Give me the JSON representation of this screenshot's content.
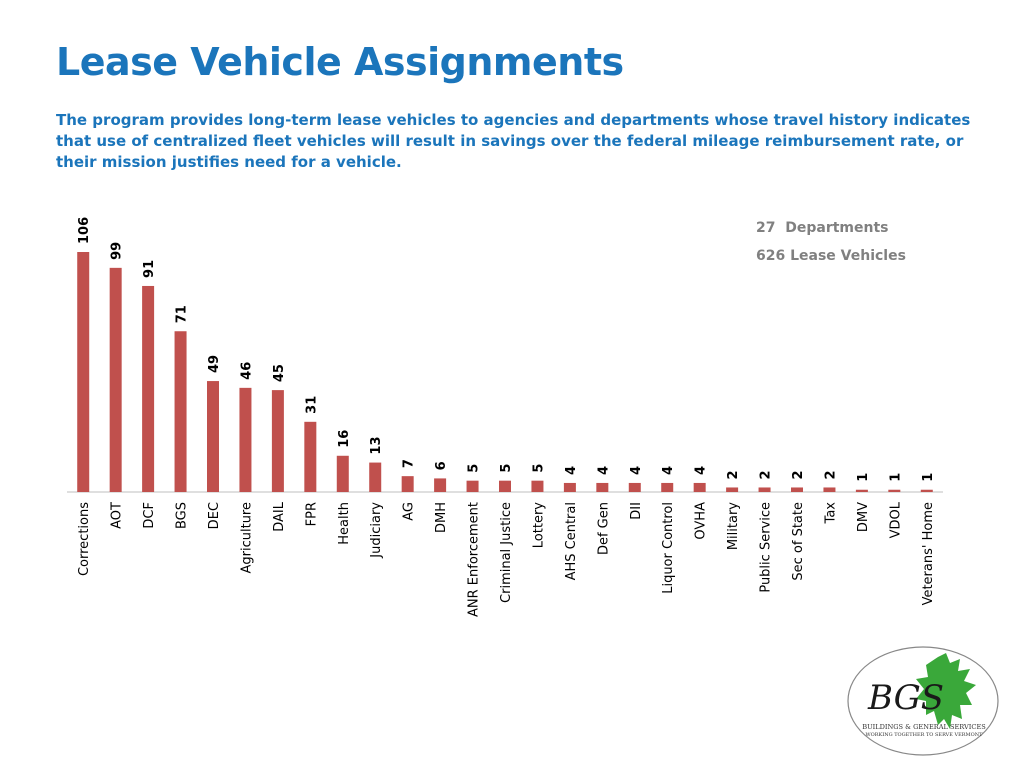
{
  "title": "Lease Vehicle Assignments",
  "description": "The program provides long-term lease vehicles to agencies and departments whose travel history indicates that use of centralized fleet vehicles will result in savings over the federal mileage reimbursement rate, or their mission justifies need for a vehicle.",
  "stats": {
    "departments": "27  Departments",
    "vehicles": "626 Lease Vehicles"
  },
  "colors": {
    "title": "#1b75bb",
    "bar": "#c0504d",
    "stats": "#808080"
  },
  "chart_data": {
    "type": "bar",
    "title": "",
    "xlabel": "",
    "ylabel": "",
    "ylim": [
      0,
      110
    ],
    "grid": false,
    "categories": [
      "Corrections",
      "AOT",
      "DCF",
      "BGS",
      "DEC",
      "Agriculture",
      "DAIL",
      "FPR",
      "Health",
      "Judiciary",
      "AG",
      "DMH",
      "ANR Enforcement",
      "Criminal Justice",
      "Lottery",
      "AHS Central",
      "Def Gen",
      "DII",
      "Liquor Control",
      "OVHA",
      "Military",
      "Public Service",
      "Sec of State",
      "Tax",
      "DMV",
      "VDOL",
      "Veterans' Home"
    ],
    "values": [
      106,
      99,
      91,
      71,
      49,
      46,
      45,
      31,
      16,
      13,
      7,
      6,
      5,
      5,
      5,
      4,
      4,
      4,
      4,
      4,
      2,
      2,
      2,
      2,
      1,
      1,
      1
    ]
  },
  "logo": {
    "initials": "BGS",
    "line1": "BUILDINGS & GENERAL SERVICES",
    "line2": "WORKING TOGETHER TO SERVE VERMONT"
  }
}
